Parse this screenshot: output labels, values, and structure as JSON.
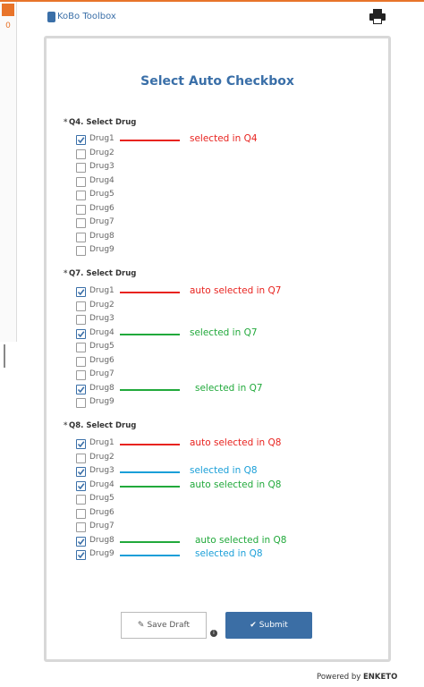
{
  "header": {
    "logo": "KoBo Toolbox",
    "queue_count": "0"
  },
  "form": {
    "title": "Select Auto Checkbox",
    "questions": [
      {
        "required": "*",
        "label": "Q4. Select Drug",
        "options": [
          {
            "label": "Drug1",
            "checked": true,
            "note": "selected in Q4",
            "note_color": "#e8231f"
          },
          {
            "label": "Drug2",
            "checked": false
          },
          {
            "label": "Drug3",
            "checked": false
          },
          {
            "label": "Drug4",
            "checked": false
          },
          {
            "label": "Drug5",
            "checked": false
          },
          {
            "label": "Drug6",
            "checked": false
          },
          {
            "label": "Drug7",
            "checked": false
          },
          {
            "label": "Drug8",
            "checked": false
          },
          {
            "label": "Drug9",
            "checked": false
          }
        ]
      },
      {
        "required": "*",
        "label": "Q7. Select Drug",
        "options": [
          {
            "label": "Drug1",
            "checked": true,
            "note": "auto selected in Q7",
            "note_color": "#e8231f"
          },
          {
            "label": "Drug2",
            "checked": false
          },
          {
            "label": "Drug3",
            "checked": false
          },
          {
            "label": "Drug4",
            "checked": true,
            "note": "selected in Q7",
            "note_color": "#21a93b"
          },
          {
            "label": "Drug5",
            "checked": false
          },
          {
            "label": "Drug6",
            "checked": false
          },
          {
            "label": "Drug7",
            "checked": false
          },
          {
            "label": "Drug8",
            "checked": true,
            "note": "selected in Q7",
            "note_color": "#21a93b"
          },
          {
            "label": "Drug9",
            "checked": false
          }
        ]
      },
      {
        "required": "*",
        "label": "Q8. Select Drug",
        "options": [
          {
            "label": "Drug1",
            "checked": true,
            "note": "auto selected in Q8",
            "note_color": "#e8231f"
          },
          {
            "label": "Drug2",
            "checked": false
          },
          {
            "label": "Drug3",
            "checked": true,
            "note": "selected in Q8",
            "note_color": "#1a9fd8"
          },
          {
            "label": "Drug4",
            "checked": true,
            "note": "auto selected in Q8",
            "note_color": "#21a93b"
          },
          {
            "label": "Drug5",
            "checked": false
          },
          {
            "label": "Drug6",
            "checked": false
          },
          {
            "label": "Drug7",
            "checked": false
          },
          {
            "label": "Drug8",
            "checked": true,
            "note": "auto selected in Q8",
            "note_color": "#21a93b"
          },
          {
            "label": "Drug9",
            "checked": true,
            "note": "selected in Q8",
            "note_color": "#1a9fd8"
          }
        ]
      }
    ]
  },
  "buttons": {
    "save_draft": "Save Draft",
    "submit": "Submit"
  },
  "footer": {
    "powered_by": "Powered by",
    "brand": "ENKETO"
  }
}
